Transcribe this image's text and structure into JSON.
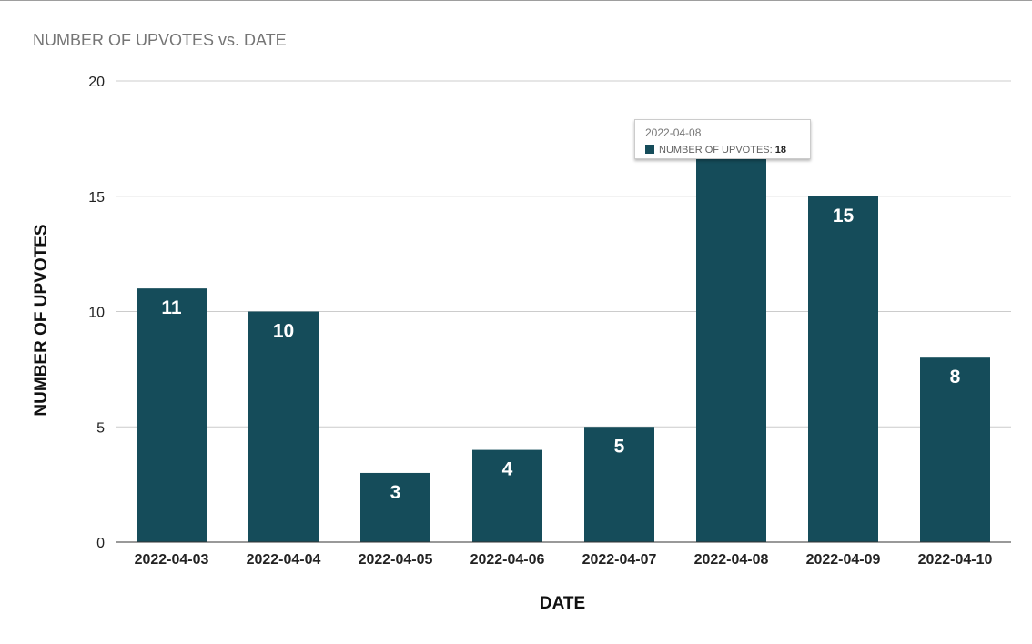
{
  "chart_data": {
    "type": "bar",
    "title": "NUMBER OF UPVOTES vs. DATE",
    "xlabel": "DATE",
    "ylabel": "NUMBER OF UPVOTES",
    "categories": [
      "2022-04-03",
      "2022-04-04",
      "2022-04-05",
      "2022-04-06",
      "2022-04-07",
      "2022-04-08",
      "2022-04-09",
      "2022-04-10"
    ],
    "series": [
      {
        "name": "NUMBER OF UPVOTES",
        "values": [
          11,
          10,
          3,
          4,
          5,
          18,
          15,
          8
        ],
        "color": "#154c5a"
      }
    ],
    "ylim": [
      0,
      20
    ],
    "yticks": [
      0,
      5,
      10,
      15,
      20
    ],
    "grid": true,
    "legend": "none",
    "data_labels": true
  },
  "tooltip": {
    "date": "2022-04-08",
    "series_label": "NUMBER OF UPVOTES",
    "separator": ": ",
    "value": "18",
    "swatch_color": "#154c5a"
  }
}
